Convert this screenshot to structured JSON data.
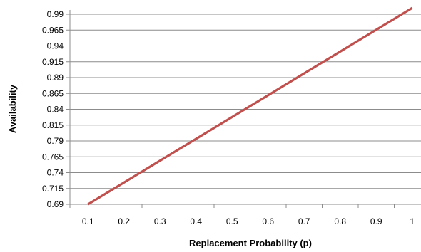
{
  "chart_data": {
    "type": "line",
    "title": "",
    "xlabel": "Replacement Probability (p)",
    "ylabel": "Availability",
    "x_ticks": [
      "0.1",
      "0.2",
      "0.3",
      "0.4",
      "0.5",
      "0.6",
      "0.7",
      "0.8",
      "0.9",
      "1"
    ],
    "y_ticks": [
      "0.69",
      "0.715",
      "0.74",
      "0.765",
      "0.79",
      "0.815",
      "0.84",
      "0.865",
      "0.89",
      "0.915",
      "0.94",
      "0.965",
      "0.99"
    ],
    "xlim": [
      0.05,
      1.05
    ],
    "ylim": [
      0.69,
      0.99
    ],
    "grid": "horizontal",
    "legend": "none",
    "series": [
      {
        "color": "#c0504d",
        "x": [
          0.1,
          1.0
        ],
        "y": [
          0.69,
          1.0
        ]
      }
    ]
  }
}
